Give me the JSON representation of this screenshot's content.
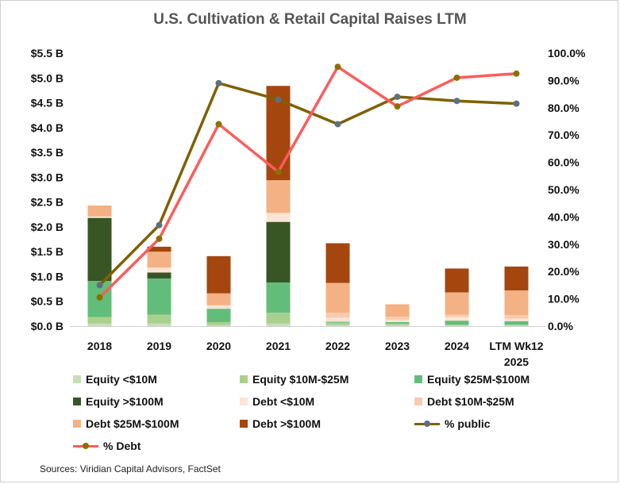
{
  "title": "U.S. Cultivation & Retail Capital Raises LTM",
  "source": "Sources: Viridian Capital Advisors, FactSet",
  "chart_data": {
    "type": "bar",
    "stacked": true,
    "categories": [
      "2018",
      "2019",
      "2020",
      "2021",
      "2022",
      "2023",
      "2024",
      "LTM Wk12 2025"
    ],
    "y_left": {
      "min": 0,
      "max": 5.5,
      "step": 0.5,
      "tick_labels": [
        "$0.0 B",
        "$0.5 B",
        "$1.0 B",
        "$1.5 B",
        "$2.0 B",
        "$2.5 B",
        "$3.0 B",
        "$3.5 B",
        "$4.0 B",
        "$4.5 B",
        "$5.0 B",
        "$5.5 B"
      ]
    },
    "y_right": {
      "min": 0,
      "max": 100,
      "step": 10,
      "tick_labels": [
        "0.0%",
        "10.0%",
        "20.0%",
        "30.0%",
        "40.0%",
        "50.0%",
        "60.0%",
        "70.0%",
        "80.0%",
        "90.0%",
        "100.0%"
      ]
    },
    "bar_series": [
      {
        "name": "Equity <$10M",
        "color": "#c6e0b4",
        "values": [
          0.05,
          0.05,
          0.02,
          0.05,
          0.02,
          0.02,
          0.01,
          0.01
        ]
      },
      {
        "name": "Equity $10M-$25M",
        "color": "#a9d08e",
        "values": [
          0.13,
          0.18,
          0.06,
          0.22,
          0.05,
          0.03,
          0.02,
          0.02
        ]
      },
      {
        "name": "Equity $25M-$100M",
        "color": "#62bd7a",
        "values": [
          0.73,
          0.73,
          0.27,
          0.61,
          0.02,
          0.03,
          0.08,
          0.07
        ]
      },
      {
        "name": "Equity >$100M",
        "color": "#375623",
        "values": [
          1.27,
          0.12,
          0.0,
          1.22,
          0.0,
          0.0,
          0.0,
          0.0
        ]
      },
      {
        "name": "Debt <$10M",
        "color": "#fce4d6",
        "values": [
          0.03,
          0.1,
          0.07,
          0.18,
          0.08,
          0.05,
          0.07,
          0.05
        ]
      },
      {
        "name": "Debt $10M-$25M",
        "color": "#f8cbad",
        "values": [
          0.0,
          0.0,
          0.0,
          0.0,
          0.1,
          0.06,
          0.05,
          0.07
        ]
      },
      {
        "name": "Debt $25M-$100M",
        "color": "#f4b183",
        "values": [
          0.22,
          0.32,
          0.24,
          0.66,
          0.6,
          0.25,
          0.45,
          0.5
        ]
      },
      {
        "name": "Debt >$100M",
        "color": "#a5460f",
        "values": [
          0.0,
          0.1,
          0.75,
          1.9,
          0.8,
          0.0,
          0.48,
          0.48
        ]
      }
    ],
    "line_series": [
      {
        "name": "% public",
        "axis": "right",
        "line_color": "#7f6000",
        "marker_color": "#5f6f7f",
        "values": [
          15.0,
          37.0,
          89.0,
          83.0,
          74.0,
          84.0,
          82.5,
          81.5
        ]
      },
      {
        "name": "% Debt",
        "axis": "right",
        "line_color": "#ff5b5b",
        "marker_color": "#8b7000",
        "values": [
          10.5,
          32.0,
          74.0,
          56.5,
          95.0,
          80.5,
          91.0,
          92.5
        ]
      }
    ],
    "legend_position": "bottom",
    "grid": false
  }
}
